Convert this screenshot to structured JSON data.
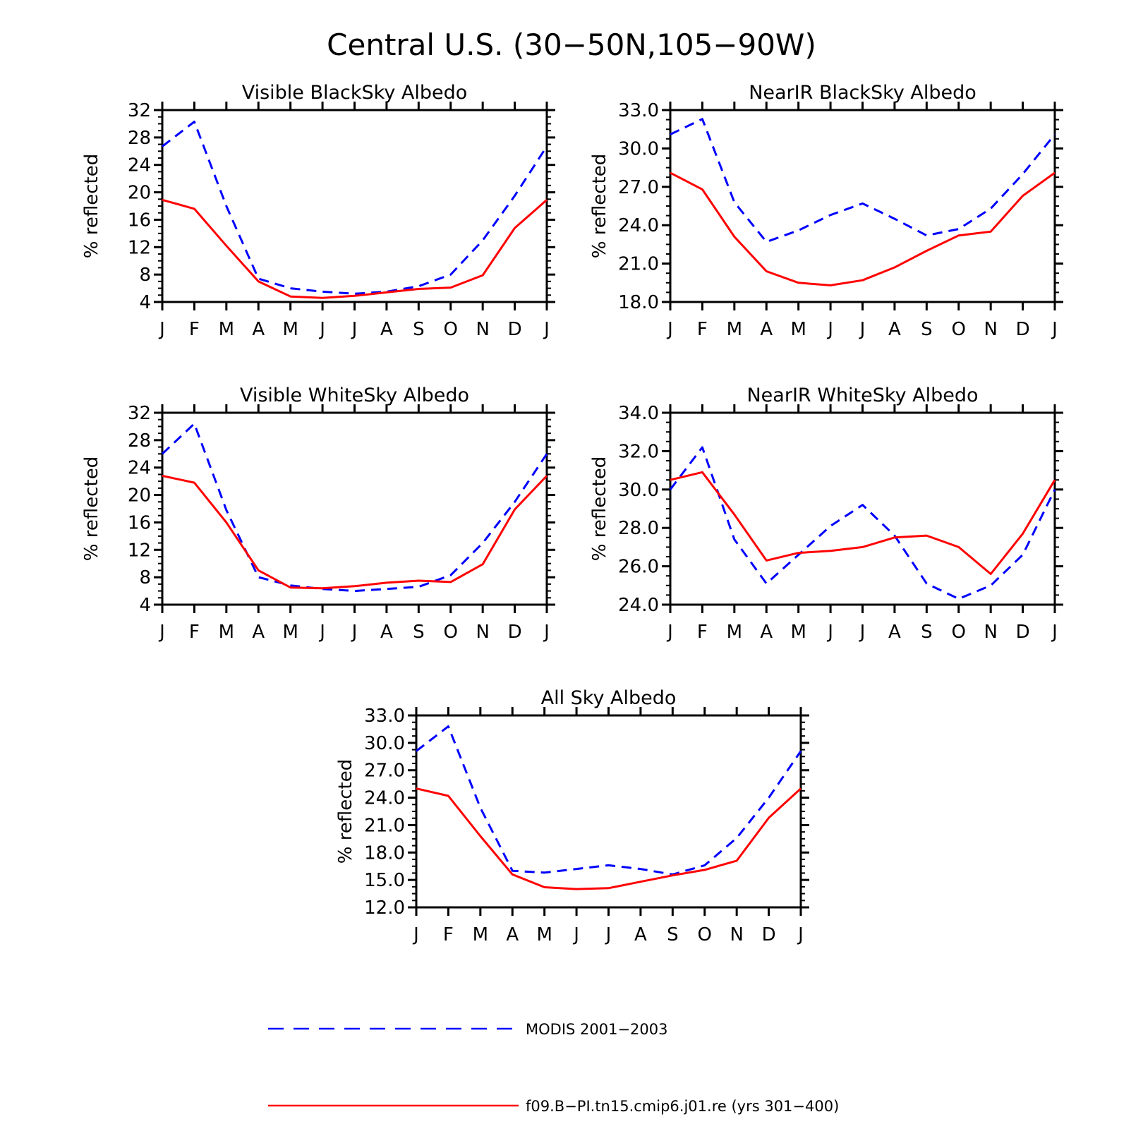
{
  "figure": {
    "title": "Central U.S. (30−50N,105−90W)",
    "ylabel": "% reflected",
    "colors": {
      "modis": "#0000ff",
      "model": "#ff0000",
      "axis": "#000000"
    }
  },
  "legend": {
    "modis_label": "MODIS 2001−2003",
    "model_label": "f09.B−PI.tn15.cmip6.j01.re (yrs 301−400)"
  },
  "chart_data": [
    {
      "type": "line",
      "title": "Visible BlackSky Albedo",
      "ylabel": "% reflected",
      "categories": [
        "J",
        "F",
        "M",
        "A",
        "M",
        "J",
        "J",
        "A",
        "S",
        "O",
        "N",
        "D",
        "J"
      ],
      "ylim": [
        4,
        32
      ],
      "yticks": [
        "4",
        "8",
        "12",
        "16",
        "20",
        "24",
        "28",
        "32"
      ],
      "series": [
        {
          "name": "MODIS 2001−2003",
          "style": "dashed",
          "color": "#0000ff",
          "values": [
            26.7,
            30.3,
            18.0,
            7.4,
            6.0,
            5.5,
            5.2,
            5.5,
            6.3,
            8.0,
            13.0,
            19.5,
            26.7
          ]
        },
        {
          "name": "f09.B−PI.tn15.cmip6.j01.re (yrs 301−400)",
          "style": "solid",
          "color": "#ff0000",
          "values": [
            18.9,
            17.6,
            12.2,
            7.0,
            4.8,
            4.6,
            4.9,
            5.4,
            5.9,
            6.1,
            7.9,
            14.8,
            18.9
          ]
        }
      ]
    },
    {
      "type": "line",
      "title": "NearIR BlackSky Albedo",
      "ylabel": "% reflected",
      "categories": [
        "J",
        "F",
        "M",
        "A",
        "M",
        "J",
        "J",
        "A",
        "S",
        "O",
        "N",
        "D",
        "J"
      ],
      "ylim": [
        18,
        33
      ],
      "yticks": [
        "18.0",
        "21.0",
        "24.0",
        "27.0",
        "30.0",
        "33.0"
      ],
      "series": [
        {
          "name": "MODIS 2001−2003",
          "style": "dashed",
          "color": "#0000ff",
          "values": [
            31.1,
            32.3,
            25.8,
            22.7,
            23.6,
            24.8,
            25.7,
            24.5,
            23.2,
            23.7,
            25.3,
            28.0,
            31.1
          ]
        },
        {
          "name": "f09.B−PI.tn15.cmip6.j01.re (yrs 301−400)",
          "style": "solid",
          "color": "#ff0000",
          "values": [
            28.1,
            26.8,
            23.1,
            20.4,
            19.5,
            19.3,
            19.7,
            20.7,
            22.0,
            23.2,
            23.5,
            26.3,
            28.1
          ]
        }
      ]
    },
    {
      "type": "line",
      "title": "Visible WhiteSky Albedo",
      "ylabel": "% reflected",
      "categories": [
        "J",
        "F",
        "M",
        "A",
        "M",
        "J",
        "J",
        "A",
        "S",
        "O",
        "N",
        "D",
        "J"
      ],
      "ylim": [
        4,
        32
      ],
      "yticks": [
        "4",
        "8",
        "12",
        "16",
        "20",
        "24",
        "28",
        "32"
      ],
      "series": [
        {
          "name": "MODIS 2001−2003",
          "style": "dashed",
          "color": "#0000ff",
          "values": [
            26.0,
            30.4,
            17.8,
            8.0,
            6.8,
            6.3,
            6.0,
            6.3,
            6.6,
            8.3,
            13.0,
            19.0,
            26.0
          ]
        },
        {
          "name": "f09.B−PI.tn15.cmip6.j01.re (yrs 301−400)",
          "style": "solid",
          "color": "#ff0000",
          "values": [
            22.8,
            21.8,
            16.0,
            9.0,
            6.5,
            6.4,
            6.7,
            7.2,
            7.5,
            7.3,
            9.9,
            17.9,
            22.8
          ]
        }
      ]
    },
    {
      "type": "line",
      "title": "NearIR WhiteSky Albedo",
      "ylabel": "% reflected",
      "categories": [
        "J",
        "F",
        "M",
        "A",
        "M",
        "J",
        "J",
        "A",
        "S",
        "O",
        "N",
        "D",
        "J"
      ],
      "ylim": [
        24,
        34
      ],
      "yticks": [
        "24.0",
        "26.0",
        "28.0",
        "30.0",
        "32.0",
        "34.0"
      ],
      "series": [
        {
          "name": "MODIS 2001−2003",
          "style": "dashed",
          "color": "#0000ff",
          "values": [
            30.0,
            32.2,
            27.4,
            25.1,
            26.6,
            28.1,
            29.2,
            27.6,
            25.1,
            24.3,
            25.0,
            26.6,
            30.0
          ]
        },
        {
          "name": "f09.B−PI.tn15.cmip6.j01.re (yrs 301−400)",
          "style": "solid",
          "color": "#ff0000",
          "values": [
            30.5,
            30.9,
            28.7,
            26.3,
            26.7,
            26.8,
            27.0,
            27.5,
            27.6,
            27.0,
            25.6,
            27.7,
            30.5
          ]
        }
      ]
    },
    {
      "type": "line",
      "title": "All Sky Albedo",
      "ylabel": "% reflected",
      "categories": [
        "J",
        "F",
        "M",
        "A",
        "M",
        "J",
        "J",
        "A",
        "S",
        "O",
        "N",
        "D",
        "J"
      ],
      "ylim": [
        12,
        33
      ],
      "yticks": [
        "12.0",
        "15.0",
        "18.0",
        "21.0",
        "24.0",
        "27.0",
        "30.0",
        "33.0"
      ],
      "series": [
        {
          "name": "MODIS 2001−2003",
          "style": "dashed",
          "color": "#0000ff",
          "values": [
            29.1,
            31.8,
            22.9,
            16.0,
            15.8,
            16.2,
            16.6,
            16.2,
            15.6,
            16.6,
            19.6,
            24.0,
            29.1
          ]
        },
        {
          "name": "f09.B−PI.tn15.cmip6.j01.re (yrs 301−400)",
          "style": "solid",
          "color": "#ff0000",
          "values": [
            25.0,
            24.2,
            19.8,
            15.6,
            14.2,
            14.0,
            14.1,
            14.8,
            15.5,
            16.1,
            17.1,
            21.8,
            25.0
          ]
        }
      ]
    }
  ]
}
